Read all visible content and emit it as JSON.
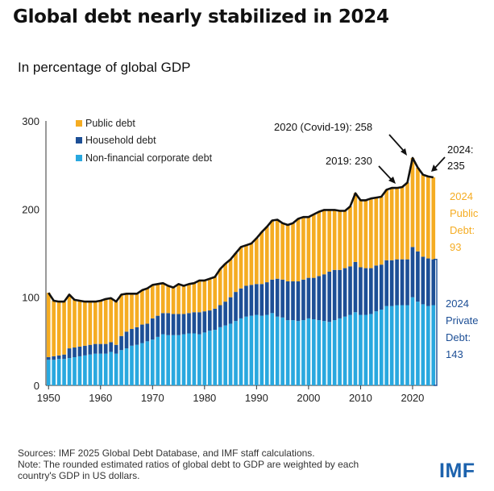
{
  "header": {
    "title": "Global debt nearly stabilized in 2024",
    "subtitle": "In percentage of global GDP"
  },
  "chart_data": {
    "type": "bar",
    "stacked": true,
    "ylim": [
      0,
      300
    ],
    "yticks": [
      0,
      100,
      200,
      300
    ],
    "xticks": [
      1950,
      1960,
      1970,
      1980,
      1990,
      2000,
      2010,
      2020
    ],
    "legend_position": "top-left",
    "x": [
      1950,
      1951,
      1952,
      1953,
      1954,
      1955,
      1956,
      1957,
      1958,
      1959,
      1960,
      1961,
      1962,
      1963,
      1964,
      1965,
      1966,
      1967,
      1968,
      1969,
      1970,
      1971,
      1972,
      1973,
      1974,
      1975,
      1976,
      1977,
      1978,
      1979,
      1980,
      1981,
      1982,
      1983,
      1984,
      1985,
      1986,
      1987,
      1988,
      1989,
      1990,
      1991,
      1992,
      1993,
      1994,
      1995,
      1996,
      1997,
      1998,
      1999,
      2000,
      2001,
      2002,
      2003,
      2004,
      2005,
      2006,
      2007,
      2008,
      2009,
      2010,
      2011,
      2012,
      2013,
      2014,
      2015,
      2016,
      2017,
      2018,
      2019,
      2020,
      2021,
      2022,
      2023,
      2024
    ],
    "series": [
      {
        "name": "Non-financial corporate debt",
        "color": "#29a8df",
        "values": [
          29,
          29,
          30,
          30,
          31,
          32,
          33,
          34,
          35,
          36,
          36,
          36,
          38,
          36,
          40,
          42,
          45,
          46,
          48,
          50,
          52,
          55,
          58,
          57,
          57,
          57,
          58,
          59,
          59,
          58,
          60,
          62,
          63,
          66,
          68,
          70,
          73,
          76,
          78,
          79,
          80,
          79,
          80,
          82,
          78,
          77,
          74,
          74,
          73,
          74,
          76,
          75,
          74,
          73,
          72,
          74,
          76,
          78,
          80,
          83,
          80,
          80,
          81,
          84,
          86,
          90,
          90,
          91,
          91,
          91,
          100,
          95,
          92,
          90,
          91
        ]
      },
      {
        "name": "Household debt",
        "color": "#1d4f96",
        "values": [
          3,
          4,
          4,
          5,
          11,
          11,
          11,
          11,
          11,
          11,
          11,
          11,
          11,
          10,
          16,
          19,
          19,
          20,
          21,
          20,
          24,
          24,
          24,
          25,
          24,
          24,
          23,
          23,
          24,
          25,
          24,
          23,
          24,
          25,
          27,
          30,
          33,
          34,
          35,
          35,
          35,
          36,
          37,
          38,
          43,
          43,
          44,
          44,
          45,
          46,
          46,
          47,
          50,
          53,
          57,
          57,
          55,
          55,
          55,
          57,
          54,
          53,
          52,
          52,
          51,
          52,
          52,
          52,
          52,
          52,
          57,
          57,
          54,
          54,
          52
        ]
      },
      {
        "name": "Public debt",
        "color": "#f5ac22",
        "values": [
          73,
          63,
          61,
          60,
          61,
          54,
          52,
          50,
          49,
          48,
          49,
          51,
          50,
          49,
          47,
          43,
          40,
          38,
          39,
          40,
          38,
          36,
          34,
          31,
          30,
          34,
          32,
          33,
          33,
          36,
          35,
          36,
          36,
          41,
          43,
          43,
          44,
          47,
          46,
          47,
          52,
          59,
          63,
          67,
          67,
          64,
          64,
          66,
          71,
          71,
          69,
          72,
          73,
          73,
          70,
          68,
          67,
          65,
          68,
          78,
          76,
          77,
          78,
          77,
          77,
          80,
          82,
          81,
          82,
          87,
          101,
          95,
          93,
          93,
          93
        ]
      }
    ],
    "totals": [
      105,
      96,
      95,
      95,
      103,
      97,
      96,
      95,
      95,
      95,
      96,
      98,
      99,
      95,
      103,
      104,
      104,
      104,
      108,
      110,
      114,
      115,
      116,
      113,
      111,
      115,
      113,
      115,
      116,
      119,
      119,
      121,
      123,
      132,
      138,
      143,
      150,
      157,
      159,
      161,
      167,
      174,
      180,
      187,
      188,
      184,
      182,
      184,
      189,
      191,
      191,
      194,
      197,
      199,
      199,
      199,
      198,
      198,
      203,
      218,
      210,
      210,
      212,
      213,
      214,
      222,
      224,
      224,
      225,
      230,
      258,
      247,
      239,
      237,
      236
    ],
    "annotations": {
      "covid": "2020 (Covid-19): 258",
      "y2019": "2019: 230",
      "y2024_a": "2024:",
      "y2024_b": "235",
      "public_lines": [
        "2024",
        "Public",
        "Debt:",
        "93"
      ],
      "private_lines": [
        "2024",
        "Private",
        "Debt:",
        "143"
      ]
    }
  },
  "footer": {
    "line1": "Sources: IMF 2025 Global Debt Database, and IMF staff calculations.",
    "line2": "Note: The rounded estimated ratios of global debt to GDP are weighted by each",
    "line3": "country's GDP in US dollars."
  },
  "logo": "IMF"
}
